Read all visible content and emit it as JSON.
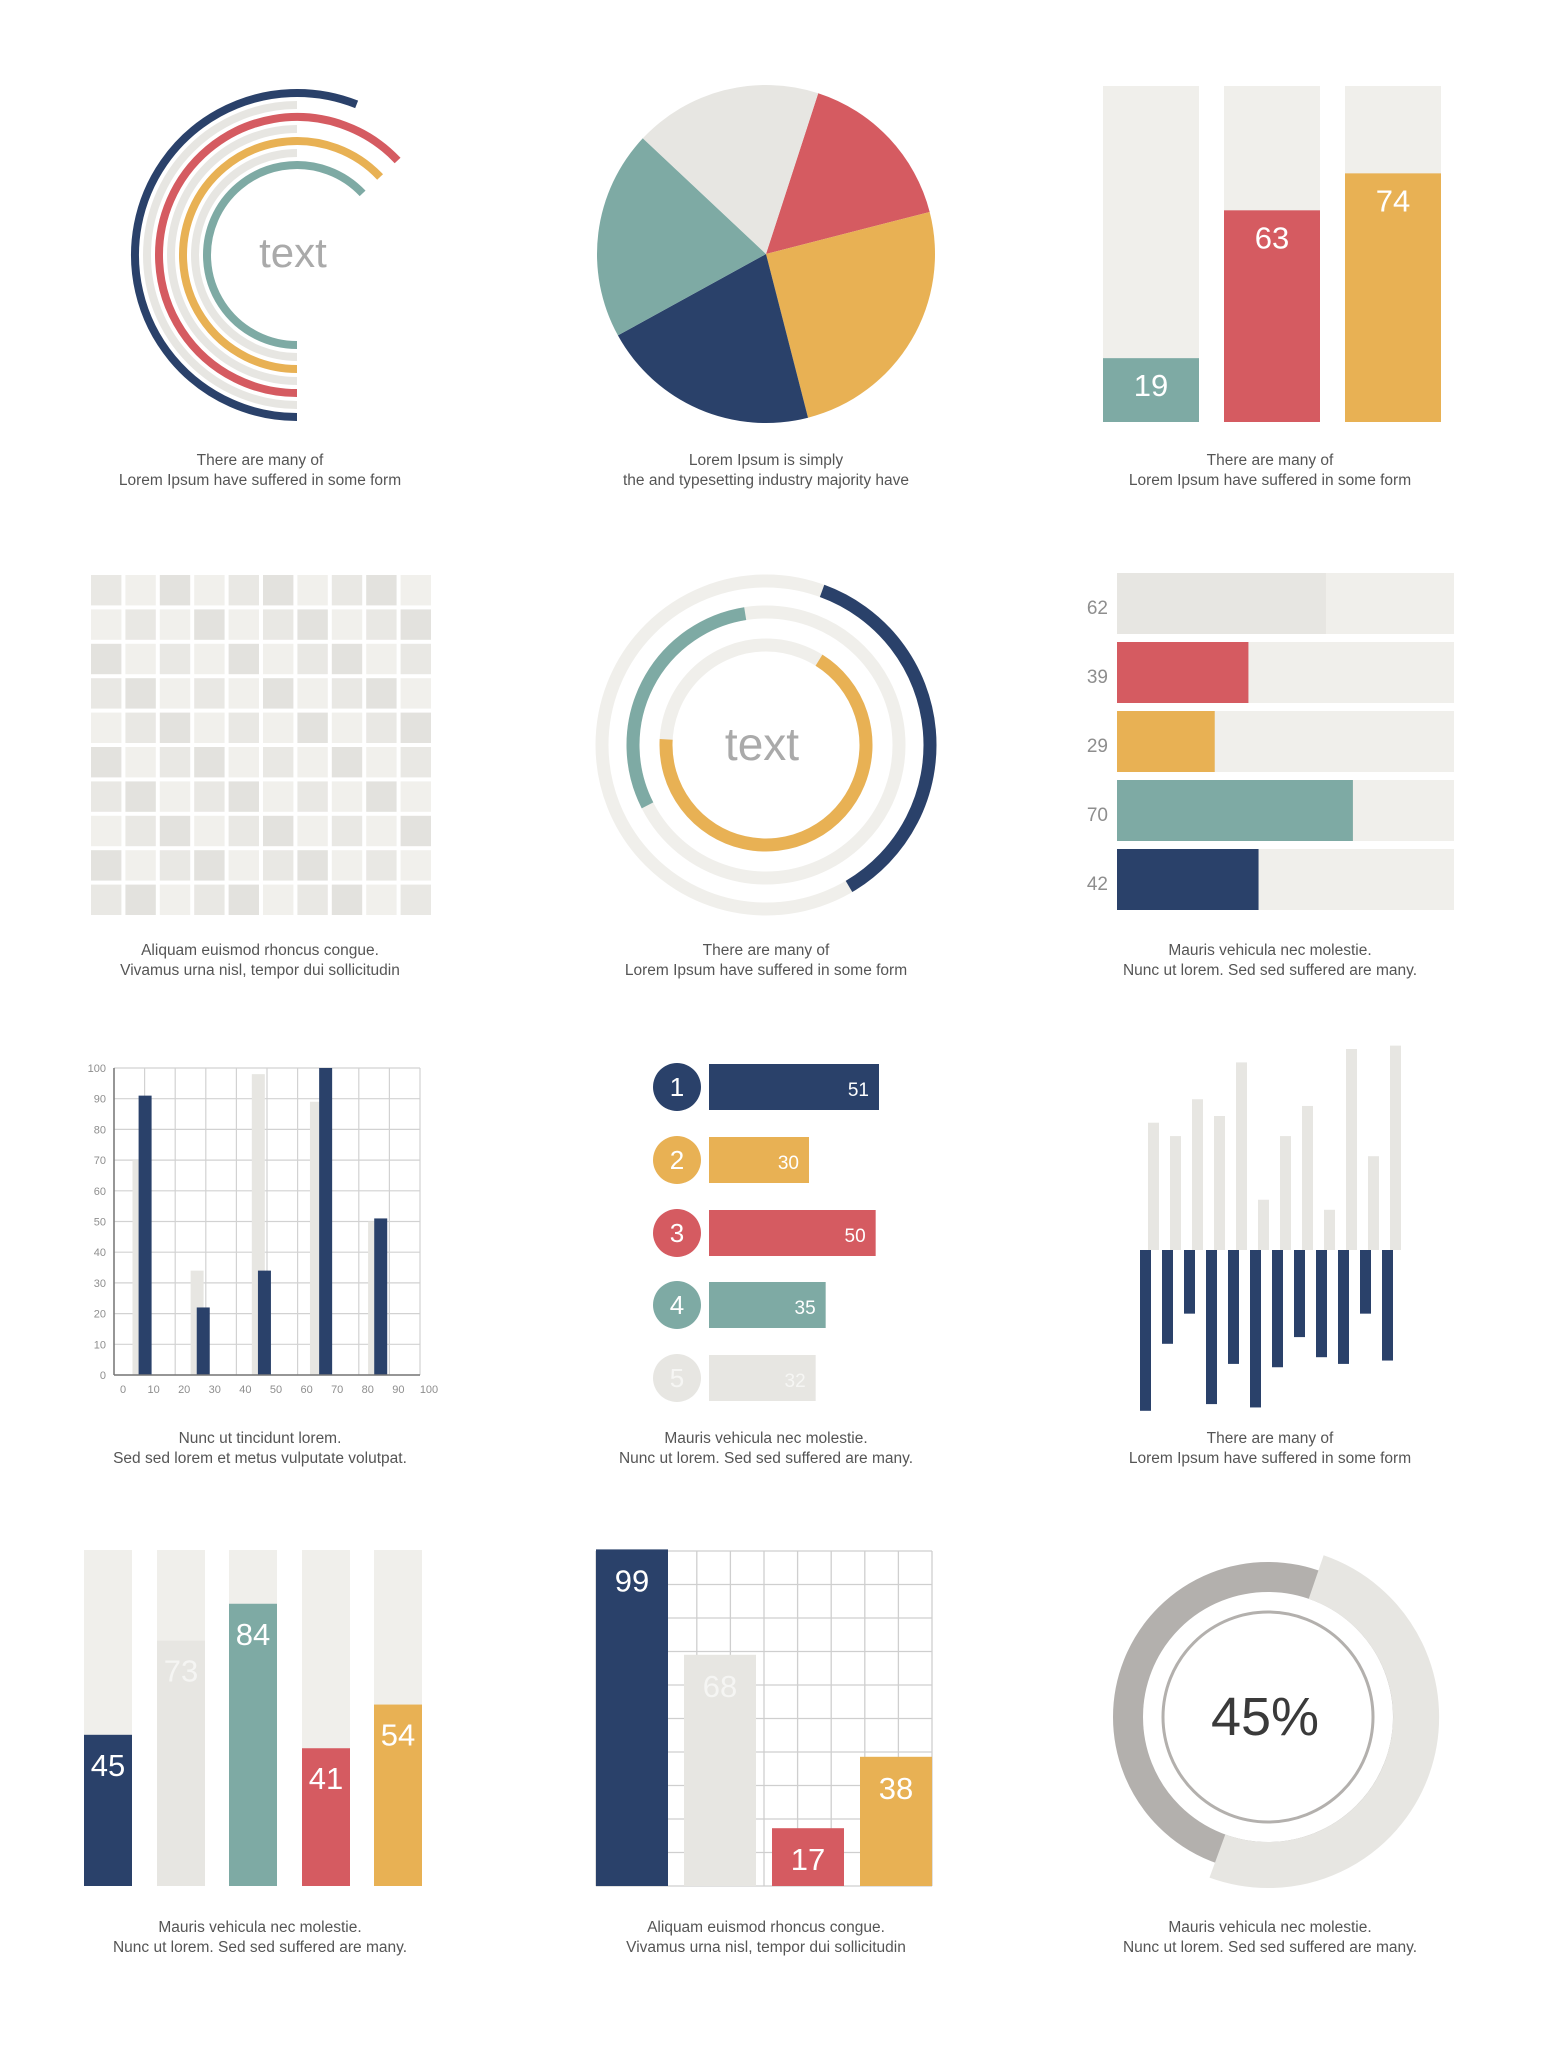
{
  "colors": {
    "navy": "#2a416a",
    "red": "#d55b61",
    "yellow": "#e8b154",
    "teal": "#7eaaa4",
    "light": "#e7e6e2",
    "pale": "#f0efeb",
    "gray": "#b3b0ad",
    "text": "#555555",
    "label": "#9a9a9a"
  },
  "captions": {
    "c1": [
      "There are many  of",
      "Lorem Ipsum  have suffered  in some form"
    ],
    "c2": [
      "Lorem Ipsum is simply",
      "the  and typesetting industry majority have"
    ],
    "c3": [
      "There are many  of",
      "Lorem Ipsum  have suffered  in some form"
    ],
    "c4": [
      "Aliquam euismod rhoncus congue.",
      "Vivamus urna nisl,  tempor dui sollicitudin"
    ],
    "c5": [
      "There are many  of",
      "Lorem Ipsum  have suffered  in some form"
    ],
    "c6": [
      "Mauris vehicula nec molestie.",
      "Nunc ut  lorem. Sed sed  suffered  are many."
    ],
    "c7": [
      "Nunc ut tincidunt lorem.",
      "Sed sed lorem et metus vulputate volutpat."
    ],
    "c8": [
      "Mauris vehicula nec molestie.",
      "Nunc ut  lorem. Sed sed  suffered  are many."
    ],
    "c9": [
      "There are many  of",
      "Lorem Ipsum  have suffered  in some form"
    ],
    "c10": [
      "Mauris vehicula nec molestie.",
      "Nunc ut  lorem. Sed sed  suffered  are many."
    ],
    "c11": [
      "Aliquam euismod rhoncus congue.",
      "Vivamus urna nisl,  tempor dui sollicitudin"
    ],
    "c12": [
      "Mauris vehicula nec molestie.",
      "Nunc ut  lorem. Sed sed  suffered  are many."
    ]
  },
  "chart_data": [
    {
      "id": "arcs",
      "type": "radial-arcs",
      "center_label": "text",
      "series": [
        {
          "color": "navy",
          "value": 0.56
        },
        {
          "color": "light",
          "value": 0.5
        },
        {
          "color": "red",
          "value": 0.63
        },
        {
          "color": "light",
          "value": 0.5
        },
        {
          "color": "yellow",
          "value": 0.63
        },
        {
          "color": "light",
          "value": 0.5
        },
        {
          "color": "teal",
          "value": 0.63
        }
      ]
    },
    {
      "id": "pie",
      "type": "pie",
      "slices": [
        {
          "color": "red",
          "value": 16
        },
        {
          "color": "yellow",
          "value": 25
        },
        {
          "color": "navy",
          "value": 21
        },
        {
          "color": "teal",
          "value": 20
        },
        {
          "color": "light",
          "value": 18
        }
      ]
    },
    {
      "id": "tallbars",
      "type": "bar",
      "ylim": [
        0,
        100
      ],
      "values": [
        19,
        63,
        74
      ],
      "colors": [
        "teal",
        "red",
        "yellow"
      ],
      "labels": [
        "19",
        "63",
        "74"
      ]
    },
    {
      "id": "grid",
      "type": "heatmap",
      "levels": [
        [
          0,
          1,
          2,
          1,
          0,
          2,
          1,
          0,
          2,
          1
        ],
        [
          1,
          0,
          1,
          2,
          1,
          0,
          2,
          1,
          0,
          2
        ],
        [
          2,
          1,
          0,
          1,
          2,
          1,
          0,
          2,
          1,
          0
        ],
        [
          0,
          2,
          1,
          0,
          1,
          2,
          1,
          0,
          2,
          1
        ],
        [
          1,
          0,
          2,
          1,
          0,
          1,
          2,
          1,
          0,
          2
        ],
        [
          2,
          1,
          0,
          2,
          1,
          0,
          1,
          2,
          1,
          0
        ],
        [
          0,
          2,
          1,
          0,
          2,
          1,
          0,
          1,
          2,
          1
        ],
        [
          1,
          0,
          2,
          1,
          0,
          2,
          1,
          0,
          1,
          2
        ],
        [
          2,
          1,
          0,
          2,
          1,
          0,
          2,
          1,
          0,
          1
        ],
        [
          0,
          2,
          1,
          0,
          2,
          1,
          0,
          2,
          1,
          0
        ]
      ],
      "level_colors": [
        "#e9e8e4",
        "#f1f0ec",
        "#e3e2de"
      ]
    },
    {
      "id": "rings",
      "type": "donut",
      "center_label": "text",
      "series": [
        {
          "color": "navy",
          "value": 0.36
        },
        {
          "color": "teal",
          "value": 0.3
        },
        {
          "color": "yellow",
          "value": 0.67
        }
      ]
    },
    {
      "id": "hbars",
      "type": "bar",
      "orientation": "horizontal",
      "xlim": [
        0,
        100
      ],
      "values": [
        62,
        39,
        29,
        70,
        42
      ],
      "colors": [
        "light",
        "red",
        "yellow",
        "teal",
        "navy"
      ],
      "labels": [
        "62",
        "39",
        "29",
        "70",
        "42"
      ]
    },
    {
      "id": "paired",
      "type": "bar",
      "xlim": [
        0,
        100
      ],
      "ylim": [
        0,
        100
      ],
      "xticks": [
        "0",
        "10",
        "20",
        "30",
        "40",
        "50",
        "60",
        "70",
        "80",
        "90",
        "100"
      ],
      "yticks": [
        "100",
        "90",
        "80",
        "70",
        "60",
        "50",
        "40",
        "30",
        "20",
        "10",
        "0"
      ],
      "series": [
        {
          "color": "light",
          "x": [
            8,
            27,
            47,
            66,
            85
          ],
          "values": [
            70,
            34,
            98,
            89,
            50
          ]
        },
        {
          "color": "navy",
          "x": [
            10,
            29,
            49,
            69,
            87
          ],
          "values": [
            91,
            22,
            34,
            100,
            51
          ]
        }
      ]
    },
    {
      "id": "ranked",
      "type": "bar",
      "orientation": "horizontal",
      "xlim": [
        0,
        51
      ],
      "ranks": [
        "1",
        "2",
        "3",
        "4",
        "5"
      ],
      "values": [
        51,
        30,
        50,
        35,
        32
      ],
      "labels": [
        "51",
        "30",
        "50",
        "35",
        "32"
      ],
      "colors": [
        "navy",
        "yellow",
        "red",
        "teal",
        "light"
      ]
    },
    {
      "id": "divergent",
      "type": "bar",
      "series": [
        {
          "color": "light",
          "values": [
            38,
            34,
            45,
            40,
            56,
            15,
            34,
            43,
            12,
            60,
            28,
            61
          ]
        },
        {
          "color": "navy",
          "values": [
            -48,
            -28,
            -19,
            -46,
            -34,
            -47,
            -35,
            -26,
            -32,
            -34,
            -19,
            -33
          ]
        }
      ]
    },
    {
      "id": "vbars",
      "type": "bar",
      "ylim": [
        0,
        100
      ],
      "values": [
        45,
        73,
        84,
        41,
        54
      ],
      "colors": [
        "navy",
        "light",
        "teal",
        "red",
        "yellow"
      ],
      "labels": [
        "45",
        "73",
        "84",
        "41",
        "54"
      ]
    },
    {
      "id": "gridbars",
      "type": "bar",
      "ylim": [
        0,
        100
      ],
      "values": [
        99,
        68,
        17,
        38
      ],
      "colors": [
        "navy",
        "light",
        "red",
        "yellow"
      ],
      "labels": [
        "99",
        "68",
        "17",
        "38"
      ]
    },
    {
      "id": "gauge",
      "type": "donut",
      "percent": 45,
      "center_label": "45%"
    }
  ]
}
